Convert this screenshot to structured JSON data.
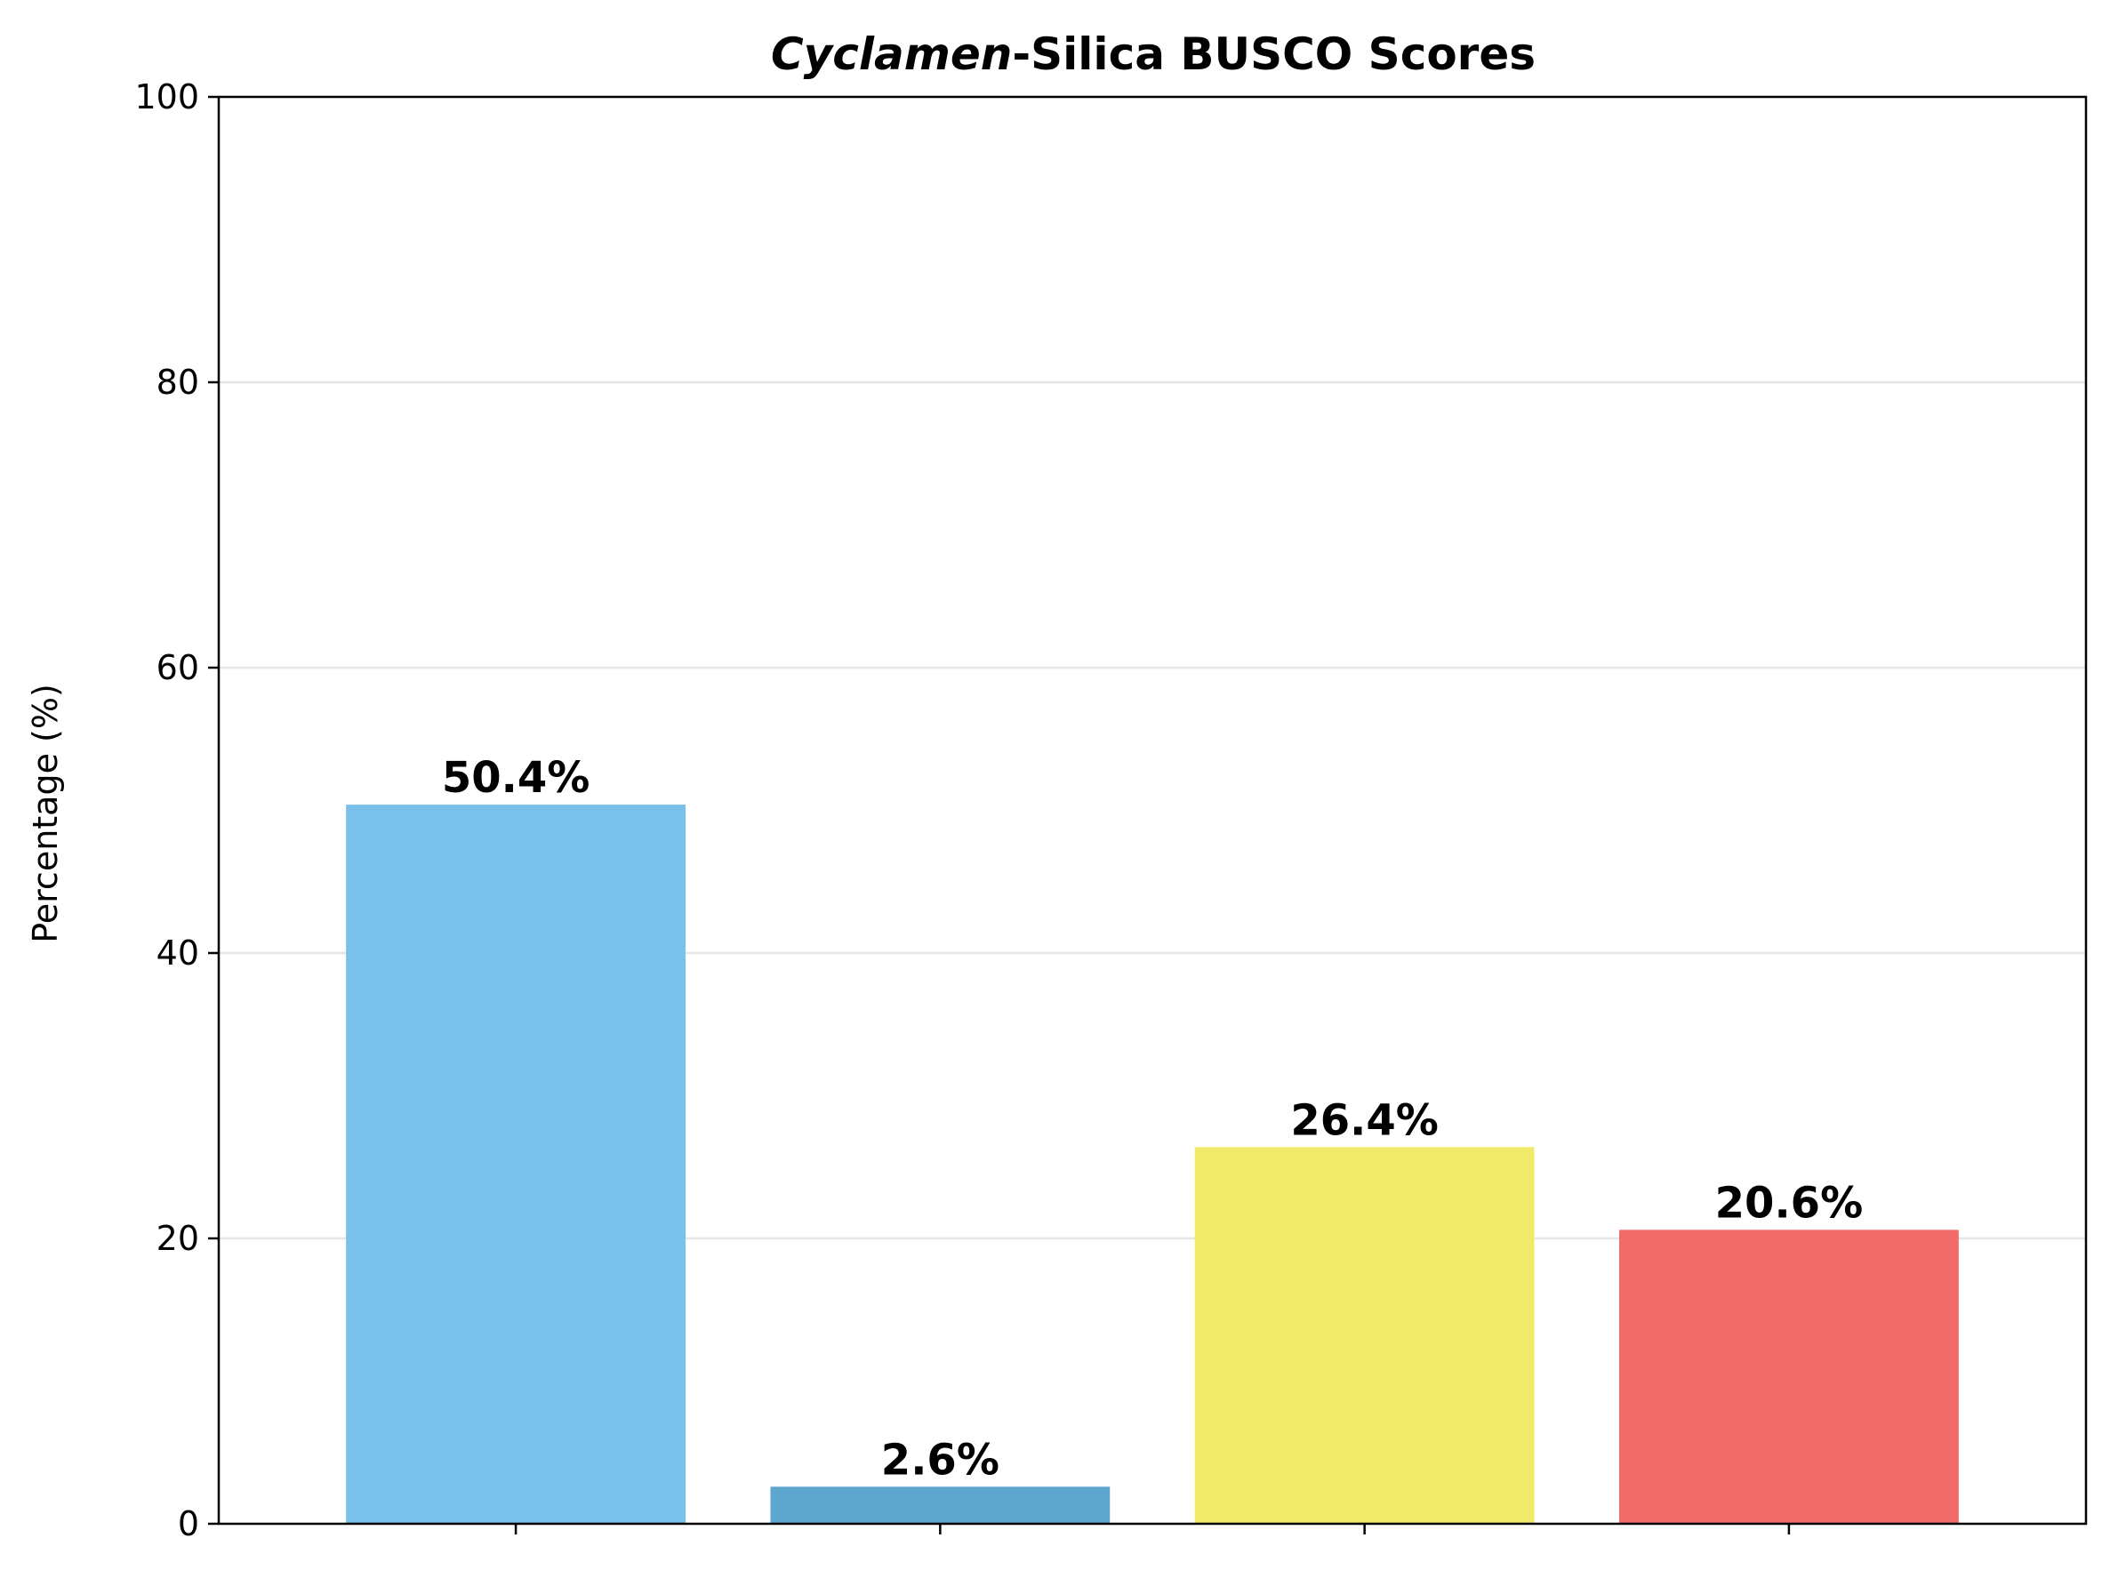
{
  "chart_data": {
    "type": "bar",
    "title": {
      "italic_part": "Cyclamen",
      "rest": "-Silica BUSCO Scores"
    },
    "xlabel": "",
    "ylabel": "Percentage (%)",
    "ylim": [
      0,
      100
    ],
    "yticks": [
      0,
      20,
      40,
      60,
      80,
      100
    ],
    "grid": "y",
    "categories": [
      "",
      "",
      "",
      ""
    ],
    "values": [
      50.4,
      2.6,
      26.4,
      20.6
    ],
    "value_labels": [
      "50.4%",
      "2.6%",
      "26.4%",
      "20.6%"
    ],
    "colors": [
      "#79c0eb",
      "#5fa6cf",
      "#f1e96a",
      "#f26b68"
    ],
    "grid_color": "#e6e6e6"
  }
}
